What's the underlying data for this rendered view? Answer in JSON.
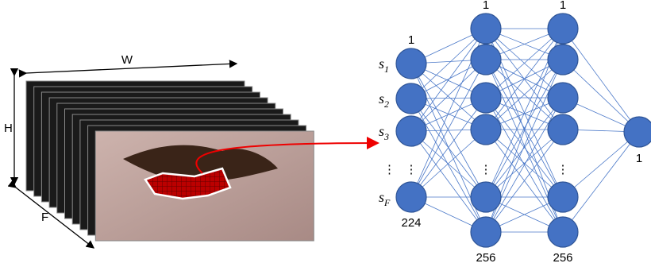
{
  "frame_stack": {
    "width_label": "W",
    "height_label": "H",
    "frames_label": "F"
  },
  "network": {
    "input_labels": [
      {
        "symbol": "s",
        "subscript": "1"
      },
      {
        "symbol": "s",
        "subscript": "2"
      },
      {
        "symbol": "s",
        "subscript": "3"
      },
      {
        "symbol": "s",
        "subscript": "F"
      }
    ],
    "ellipsis": "⋮",
    "layers": [
      {
        "top": "1",
        "bottom": "224"
      },
      {
        "top": "1",
        "bottom": "256"
      },
      {
        "top": "1",
        "bottom": "256"
      }
    ],
    "output": "1"
  }
}
